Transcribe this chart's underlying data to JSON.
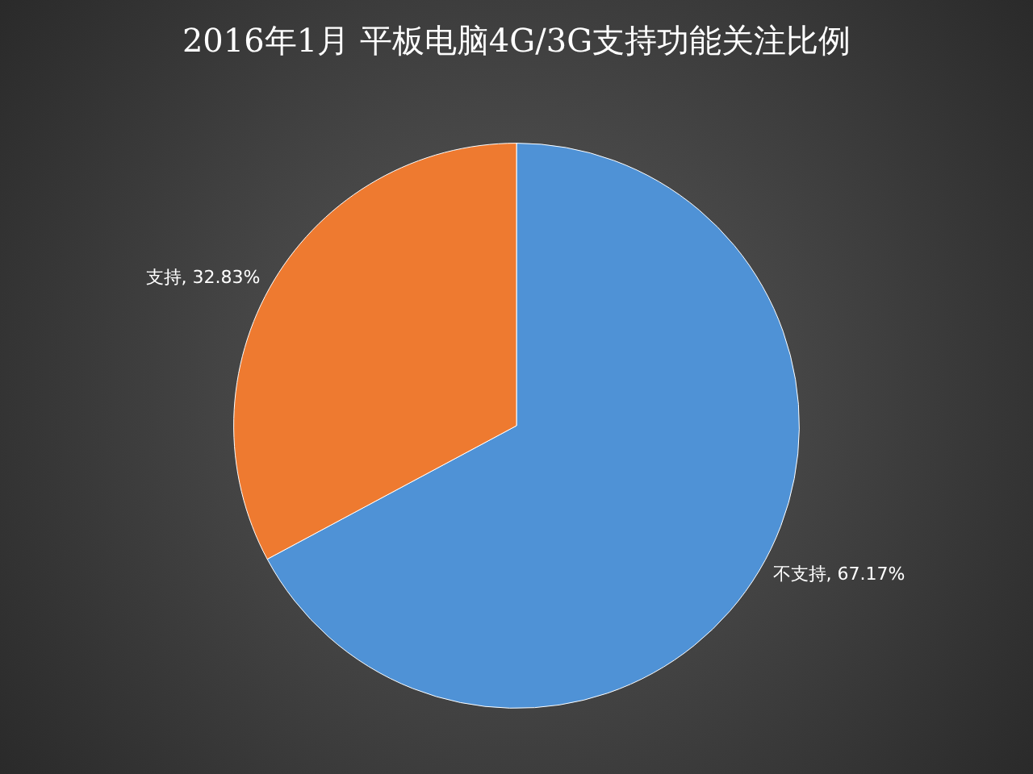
{
  "chart_data": {
    "type": "pie",
    "title": "2016年1月 平板电脑4G/3G支持功能关注比例",
    "categories": [
      "不支持",
      "支持"
    ],
    "values": [
      67.17,
      32.83
    ],
    "colors": [
      "#4f92d6",
      "#ee7a30"
    ],
    "value_labels": [
      ", 67.17%",
      ", 32.83%"
    ]
  }
}
